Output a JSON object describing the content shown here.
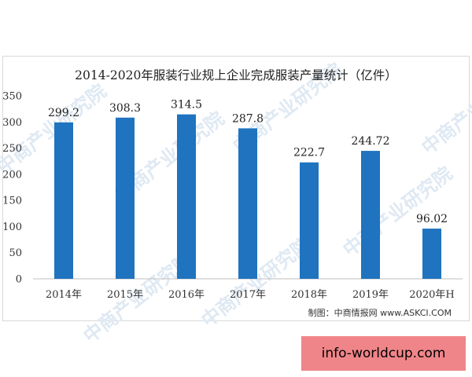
{
  "chart_data": {
    "type": "bar",
    "title": "2014-2020年服装行业规上企业完成服装产量统计（亿件）",
    "categories": [
      "2014年",
      "2015年",
      "2016年",
      "2017年",
      "2018年",
      "2019年",
      "2020年H"
    ],
    "values": [
      299.2,
      308.3,
      314.5,
      287.8,
      222.7,
      244.72,
      96.02
    ],
    "value_labels": [
      "299.2",
      "308.3",
      "314.5",
      "287.8",
      "222.7",
      "244.72",
      "96.02"
    ],
    "y_ticks": [
      "0",
      "50",
      "100",
      "150",
      "200",
      "250",
      "300",
      "350"
    ],
    "ylim": [
      0,
      350
    ],
    "grid": false,
    "legend": "none",
    "bar_color": "#1f73bf",
    "xlabel": "",
    "ylabel": ""
  },
  "source": "制图：中商情报网 www.ASKCI.COM",
  "watermark_text": "中商产业研究院",
  "badge_text": "info-worldcup.com"
}
